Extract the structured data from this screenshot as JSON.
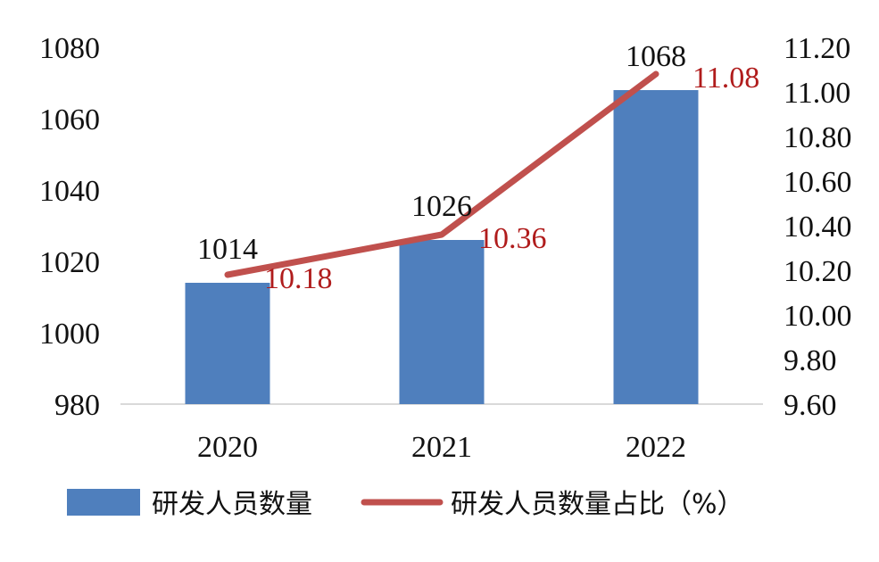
{
  "chart_data": {
    "type": "bar",
    "categories": [
      "2020",
      "2021",
      "2022"
    ],
    "series": [
      {
        "name": "研发人员数量",
        "type": "bar",
        "axis": "left",
        "values": [
          1014,
          1026,
          1068
        ],
        "labels": [
          "1014",
          "1026",
          "1068"
        ],
        "color": "#4f7fbd"
      },
      {
        "name": "研发人员数量占比（%）",
        "type": "line",
        "axis": "right",
        "values": [
          10.18,
          10.36,
          11.08
        ],
        "labels": [
          "10.18",
          "10.36",
          "11.08"
        ],
        "color": "#c0504d",
        "label_color": "#b01c1c"
      }
    ],
    "left_axis": {
      "ylim": [
        980,
        1080
      ],
      "ticks": [
        "980",
        "1000",
        "1020",
        "1040",
        "1060",
        "1080"
      ]
    },
    "right_axis": {
      "ylim": [
        9.6,
        11.2
      ],
      "ticks": [
        "9.60",
        "9.80",
        "10.00",
        "10.20",
        "10.40",
        "10.60",
        "10.80",
        "11.00",
        "11.20"
      ]
    },
    "grid": false,
    "legend": "bottom"
  }
}
